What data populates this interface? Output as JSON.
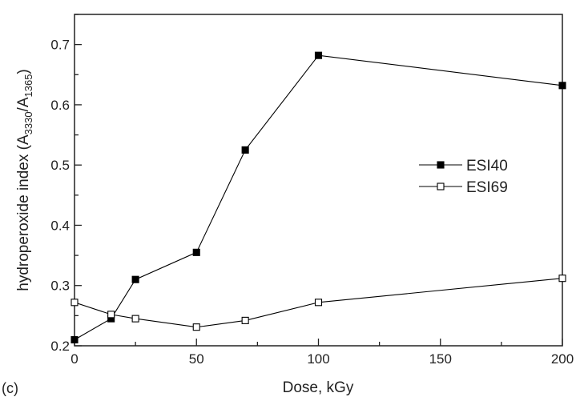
{
  "chart_data": {
    "type": "line",
    "panel_label": "(c)",
    "xlabel": "Dose, kGy",
    "ylabel": {
      "prefix": "hydroperoxide index  (A",
      "sub1": "3330",
      "middle": "/A",
      "sub2": "1365",
      "suffix": ")"
    },
    "xlim": [
      0,
      200
    ],
    "ylim": [
      0.2,
      0.75
    ],
    "xticks": [
      0,
      50,
      100,
      150,
      200
    ],
    "xtick_labels": [
      "0",
      "50",
      "100",
      "150",
      "200"
    ],
    "yticks": [
      0.2,
      0.3,
      0.4,
      0.5,
      0.6,
      0.7
    ],
    "ytick_labels": [
      "0.2",
      "0.3",
      "0.4",
      "0.5",
      "0.6",
      "0.7"
    ],
    "grid": false,
    "legend_position": "right",
    "series": [
      {
        "name": "ESI40",
        "marker": "filled-square",
        "color": "#000000",
        "x": [
          0,
          15,
          25,
          50,
          70,
          100,
          200
        ],
        "y": [
          0.21,
          0.245,
          0.31,
          0.355,
          0.525,
          0.682,
          0.632
        ]
      },
      {
        "name": "ESI69",
        "marker": "open-square",
        "color": "#000000",
        "x": [
          0,
          15,
          25,
          50,
          70,
          100,
          200
        ],
        "y": [
          0.272,
          0.252,
          0.245,
          0.231,
          0.242,
          0.272,
          0.312
        ]
      }
    ]
  }
}
